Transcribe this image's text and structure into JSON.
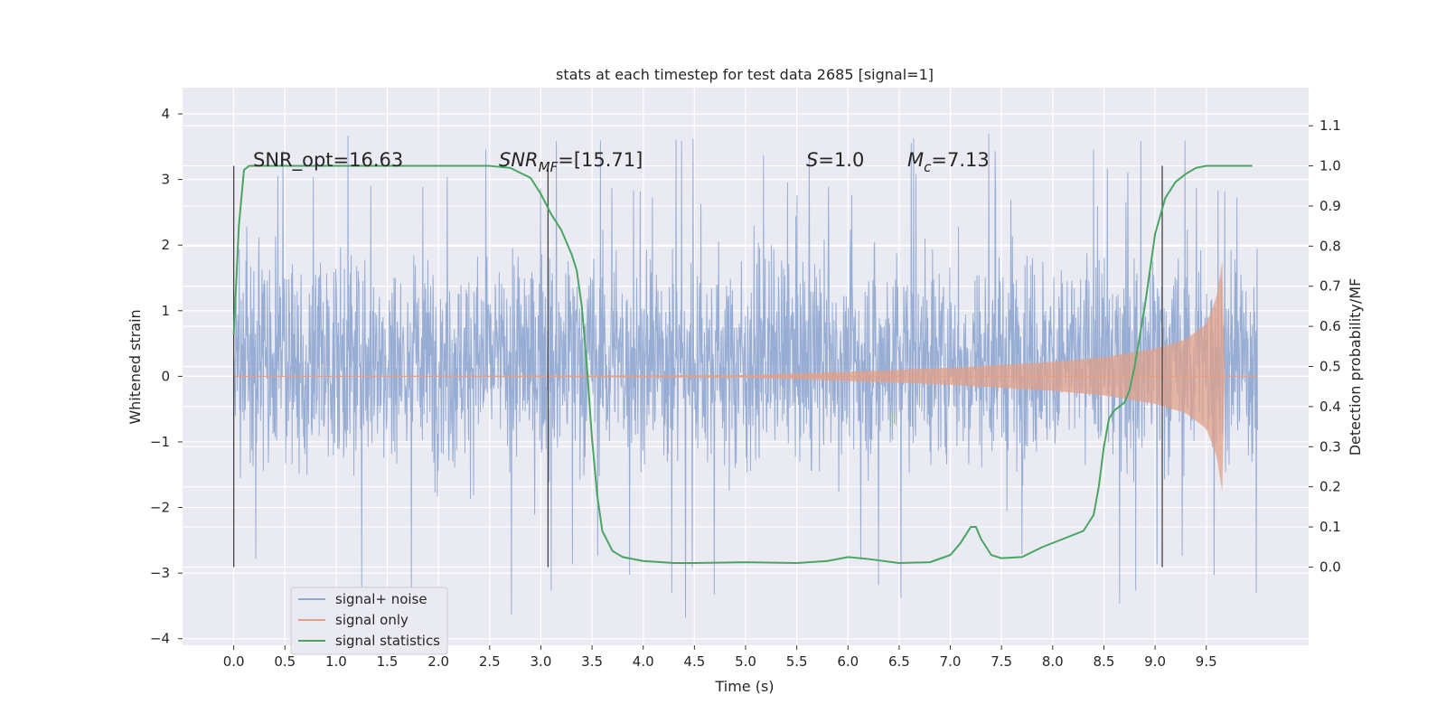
{
  "chart_data": {
    "type": "line",
    "title": "stats at each timestep for test data 2685 [signal=1]",
    "xlabel": "Time (s)",
    "ylabel_left": "Whitened strain",
    "ylabel_right": "Detection probability/MF",
    "xlim": [
      -0.5,
      10.5
    ],
    "ylim_left": [
      -4.1,
      4.4
    ],
    "ylim_right": [
      -0.195,
      1.195
    ],
    "xticks": [
      "0.0",
      "0.5",
      "1.0",
      "1.5",
      "2.0",
      "2.5",
      "3.0",
      "3.5",
      "4.0",
      "4.5",
      "5.0",
      "5.5",
      "6.0",
      "6.5",
      "7.0",
      "7.5",
      "8.0",
      "8.5",
      "9.0",
      "9.5"
    ],
    "yticks_left": [
      "−4",
      "−3",
      "−2",
      "−1",
      "0",
      "1",
      "2",
      "3",
      "4"
    ],
    "yticks_right": [
      "0.0",
      "0.1",
      "0.2",
      "0.3",
      "0.4",
      "0.5",
      "0.6",
      "0.7",
      "0.8",
      "0.9",
      "1.0",
      "1.1"
    ],
    "grid": true,
    "legend_position": "lower-left",
    "annotations": {
      "snr_opt": "SNR_opt=16.63",
      "snr_mf_base": "SNR",
      "snr_mf_sub": "MF",
      "snr_mf_tail": "=[15.71]",
      "s_base": "S",
      "s_tail": "=1.0",
      "mc_base": "M",
      "mc_sub": "c",
      "mc_tail": "=7.13"
    },
    "vertical_markers_x": [
      0.0,
      3.07,
      9.07
    ],
    "series": [
      {
        "name": "signal+ noise",
        "color": "#8fa6d0",
        "axis": "left",
        "description_stats": {
          "x_start": 0.0,
          "x_end": 10.0,
          "approx_min": -3.7,
          "approx_max": 4.05
        }
      },
      {
        "name": "signal only",
        "color": "#e0a08a",
        "axis": "left",
        "chirp_envelope": {
          "x": [
            0.0,
            5.0,
            6.0,
            7.0,
            8.0,
            8.5,
            9.0,
            9.3,
            9.5,
            9.6,
            9.66,
            9.68
          ],
          "amp": [
            0.0,
            0.02,
            0.07,
            0.13,
            0.22,
            0.29,
            0.42,
            0.56,
            0.8,
            1.2,
            1.8,
            0.0
          ]
        }
      },
      {
        "name": "signal statistics",
        "color": "#4aa564",
        "axis": "right",
        "x": [
          0.0,
          0.05,
          0.1,
          0.15,
          0.2,
          0.5,
          1.0,
          2.0,
          2.5,
          2.7,
          2.9,
          3.0,
          3.1,
          3.2,
          3.3,
          3.35,
          3.4,
          3.45,
          3.5,
          3.55,
          3.6,
          3.7,
          3.8,
          4.0,
          4.3,
          4.5,
          5.0,
          5.5,
          5.8,
          6.0,
          6.2,
          6.5,
          6.8,
          7.0,
          7.1,
          7.2,
          7.25,
          7.3,
          7.4,
          7.5,
          7.7,
          7.9,
          8.1,
          8.3,
          8.4,
          8.45,
          8.5,
          8.55,
          8.6,
          8.7,
          8.75,
          8.8,
          8.9,
          9.0,
          9.1,
          9.2,
          9.3,
          9.4,
          9.5,
          9.7,
          9.95
        ],
        "values": [
          0.58,
          0.85,
          0.99,
          1.0,
          1.0,
          1.0,
          1.0,
          1.0,
          1.0,
          0.995,
          0.97,
          0.93,
          0.88,
          0.84,
          0.78,
          0.74,
          0.65,
          0.5,
          0.32,
          0.18,
          0.09,
          0.04,
          0.025,
          0.015,
          0.01,
          0.01,
          0.012,
          0.01,
          0.015,
          0.025,
          0.02,
          0.01,
          0.012,
          0.03,
          0.06,
          0.1,
          0.1,
          0.07,
          0.03,
          0.022,
          0.025,
          0.05,
          0.07,
          0.09,
          0.13,
          0.2,
          0.3,
          0.37,
          0.39,
          0.41,
          0.44,
          0.5,
          0.65,
          0.83,
          0.92,
          0.96,
          0.98,
          0.995,
          1.0,
          1.0,
          1.0
        ]
      }
    ]
  }
}
